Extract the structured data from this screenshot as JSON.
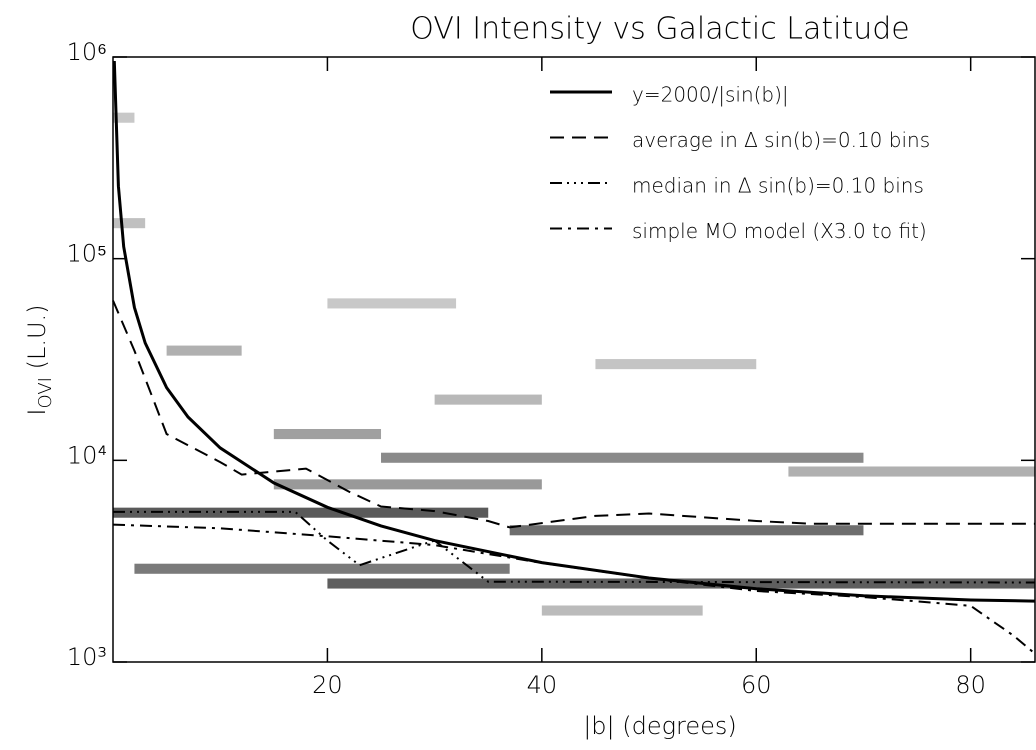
{
  "chart_data": {
    "type": "line",
    "title": "OVI Intensity vs Galactic Latitude",
    "x_label": "|b| (degrees)",
    "y_label": "I",
    "y_label_sub": "OVI",
    "y_label_rest": " (L.U.)",
    "xlim": [
      0,
      86
    ],
    "xticks": [
      20,
      40,
      60,
      80
    ],
    "ylim": [
      1000,
      1000000
    ],
    "yticks": [
      {
        "value": 1000,
        "label": "10³"
      },
      {
        "value": 10000,
        "label": "10⁴"
      },
      {
        "value": 100000,
        "label": "10⁵"
      },
      {
        "value": 1000000,
        "label": "10⁶"
      }
    ],
    "y_log": true,
    "legend": "upper right",
    "series": [
      {
        "name": "y=2000/|sin(b)|",
        "color": "#000000",
        "dash": "none",
        "width": 3,
        "x": [
          0.12,
          0.5,
          1,
          2,
          3,
          5,
          7,
          10,
          15,
          20,
          25,
          30,
          40,
          50,
          60,
          70,
          80,
          86
        ],
        "values": [
          955000,
          229000,
          114600,
          57300,
          38200,
          22950,
          16410,
          11520,
          7730,
          5850,
          4730,
          4000,
          3110,
          2610,
          2310,
          2130,
          2030,
          2005
        ]
      },
      {
        "name": "average in Δ sin(b)=0.10 bins",
        "color": "#000000",
        "dash": "14,8",
        "width": 2,
        "x": [
          0,
          2,
          5,
          10,
          12,
          18,
          22,
          25,
          30,
          35,
          37,
          45,
          50,
          60,
          65,
          86
        ],
        "values": [
          62000,
          35000,
          13500,
          9800,
          8500,
          9100,
          7000,
          5900,
          5600,
          5000,
          4650,
          5300,
          5450,
          5000,
          4850,
          4850
        ]
      },
      {
        "name": "median in Δ sin(b)=0.10 bins",
        "color": "#000000",
        "dash": "12,5,2,5,2,5,2,5",
        "width": 2,
        "x": [
          0,
          17,
          20,
          23,
          28,
          30,
          35,
          86
        ],
        "values": [
          5550,
          5550,
          4000,
          3020,
          3700,
          4000,
          2500,
          2480
        ]
      },
      {
        "name": "simple MO model (X3.0 to fit)",
        "color": "#000000",
        "dash": "12,6,3,6",
        "width": 2,
        "x": [
          0,
          10,
          20,
          30,
          40,
          50,
          60,
          70,
          80,
          82,
          84,
          86
        ],
        "values": [
          4800,
          4600,
          4200,
          3800,
          3100,
          2600,
          2250,
          2100,
          1900,
          1600,
          1350,
          1100
        ]
      }
    ],
    "density_bands": [
      {
        "x": [
          2,
          37
        ],
        "y": 2900,
        "color": "#7a7a7a"
      },
      {
        "x": [
          20,
          86
        ],
        "y": 2450,
        "color": "#5e5e5e"
      },
      {
        "x": [
          37,
          70
        ],
        "y": 4500,
        "color": "#6e6e6e"
      },
      {
        "x": [
          0,
          35
        ],
        "y": 5500,
        "color": "#5a5a5a"
      },
      {
        "x": [
          25,
          70
        ],
        "y": 10300,
        "color": "#8a8a8a"
      },
      {
        "x": [
          15,
          40
        ],
        "y": 7600,
        "color": "#999999"
      },
      {
        "x": [
          15,
          25
        ],
        "y": 13500,
        "color": "#a0a0a0"
      },
      {
        "x": [
          30,
          40
        ],
        "y": 20000,
        "color": "#b8b8b8"
      },
      {
        "x": [
          63,
          86
        ],
        "y": 8800,
        "color": "#b0b0b0"
      },
      {
        "x": [
          0,
          2
        ],
        "y": 500000,
        "color": "#c8c8c8"
      },
      {
        "x": [
          0,
          3
        ],
        "y": 150000,
        "color": "#c0c0c0"
      },
      {
        "x": [
          5,
          12
        ],
        "y": 35000,
        "color": "#b0b0b0"
      },
      {
        "x": [
          40,
          55
        ],
        "y": 1800,
        "color": "#bbbbbb"
      },
      {
        "x": [
          45,
          60
        ],
        "y": 30000,
        "color": "#c4c4c4"
      },
      {
        "x": [
          20,
          32
        ],
        "y": 60000,
        "color": "#c8c8c8"
      }
    ]
  }
}
